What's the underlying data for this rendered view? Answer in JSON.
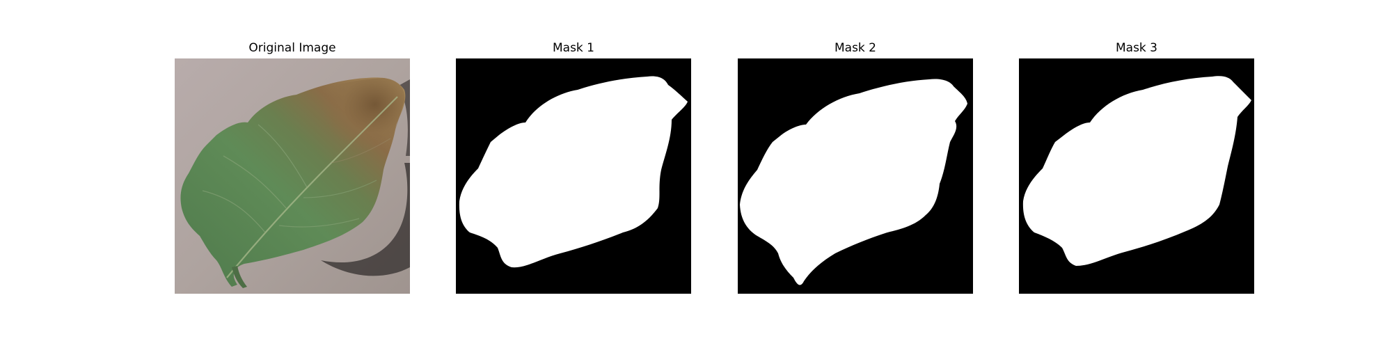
{
  "figure": {
    "panels": [
      {
        "title": "Original Image"
      },
      {
        "title": "Mask 1"
      },
      {
        "title": "Mask 2"
      },
      {
        "title": "Mask 3"
      }
    ]
  },
  "colors": {
    "background": "#ffffff",
    "mask_background": "#000000",
    "mask_foreground": "#ffffff",
    "surface": "#b0a5a1",
    "leaf_healthy": "#5c8455",
    "leaf_diseased": "#8a6a45",
    "shadow": "#2f2b2a"
  }
}
